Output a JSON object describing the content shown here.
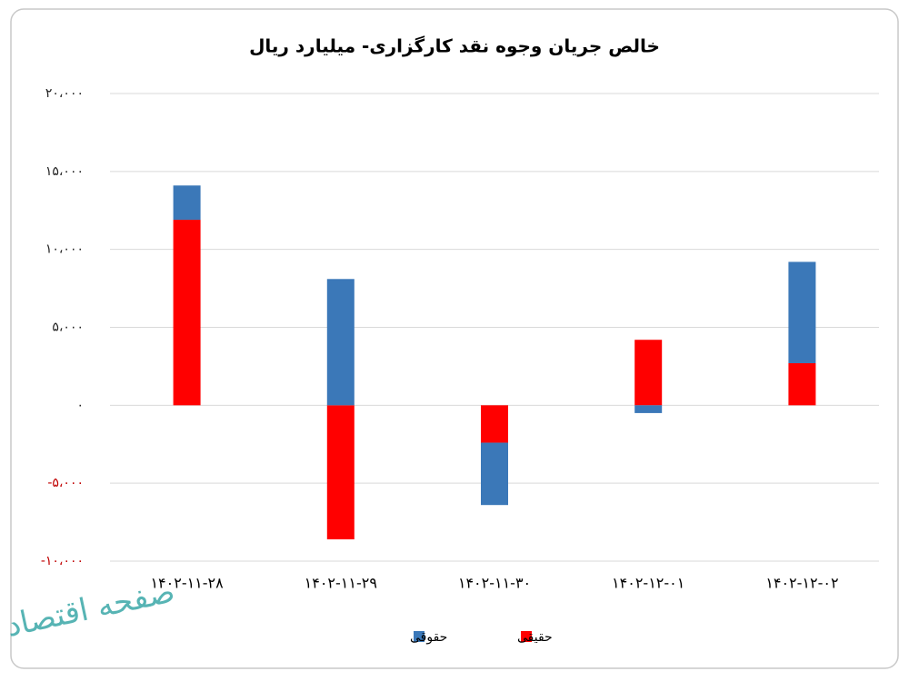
{
  "chart_data": {
    "type": "stacked_bar",
    "title": "خالص جریان وجوه نقد کارگزاری- میلیارد ریال",
    "categories": [
      "۱۴۰۲-۱۱-۲۸",
      "۱۴۰۲-۱۱-۲۹",
      "۱۴۰۲-۱۱-۳۰",
      "۱۴۰۲-۱۲-۰۱",
      "۱۴۰۲-۱۲-۰۲"
    ],
    "series": [
      {
        "name": "حقیقی",
        "color": "#ff0000",
        "values": [
          11900,
          -8600,
          -2400,
          4200,
          2700
        ]
      },
      {
        "name": "حقوقی",
        "color": "#3b78b8",
        "values": [
          2200,
          8100,
          -4000,
          -500,
          6500
        ]
      }
    ],
    "ylim": [
      -10000,
      20000
    ],
    "yticks": [
      {
        "value": 20000,
        "label": "۲۰،۰۰۰"
      },
      {
        "value": 15000,
        "label": "۱۵،۰۰۰"
      },
      {
        "value": 10000,
        "label": "۱۰،۰۰۰"
      },
      {
        "value": 5000,
        "label": "۵،۰۰۰"
      },
      {
        "value": 0,
        "label": "۰"
      },
      {
        "value": -5000,
        "label": "-۵،۰۰۰"
      },
      {
        "value": -10000,
        "label": "-۱۰،۰۰۰"
      }
    ],
    "negative_tick_color": "#c00000",
    "grid": true,
    "legend": "bottom",
    "watermark": "صفحه اقتصاد"
  }
}
